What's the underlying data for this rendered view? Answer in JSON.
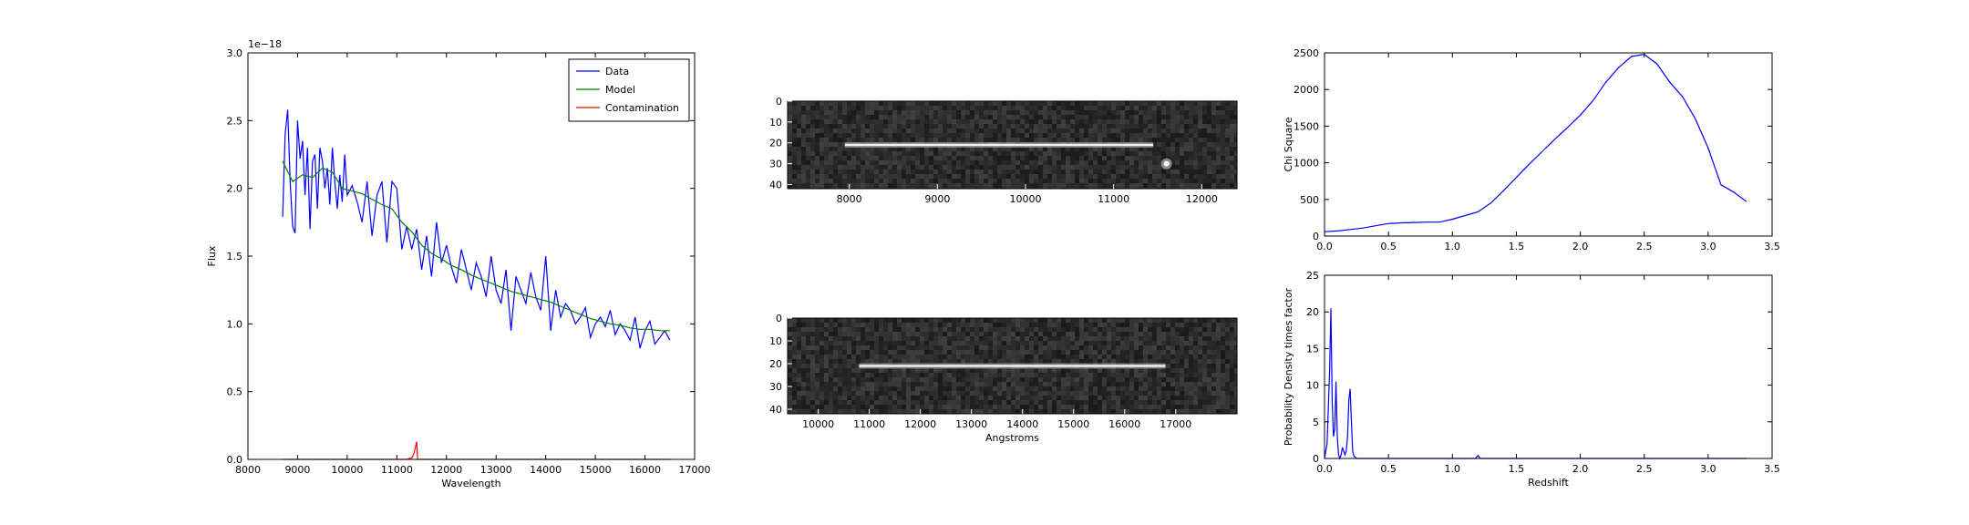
{
  "chart_data": [
    {
      "type": "line",
      "id": "spectrum",
      "xlabel": "Wavelength",
      "ylabel": "Flux",
      "offset_text": "1e−18",
      "xlim": [
        8000,
        17000
      ],
      "ylim": [
        0.0,
        3.0
      ],
      "xticks": [
        "8000",
        "9000",
        "10000",
        "11000",
        "12000",
        "13000",
        "14000",
        "15000",
        "16000",
        "17000"
      ],
      "yticks": [
        "0.0",
        "0.5",
        "1.0",
        "1.5",
        "2.0",
        "2.5",
        "3.0"
      ],
      "legend_position": "top-right",
      "series": [
        {
          "name": "Data",
          "color": "#0000ff",
          "x": [
            8700,
            8750,
            8800,
            8850,
            8900,
            8950,
            9000,
            9050,
            9100,
            9150,
            9200,
            9250,
            9300,
            9350,
            9400,
            9450,
            9500,
            9550,
            9600,
            9650,
            9700,
            9750,
            9800,
            9850,
            9900,
            9950,
            10000,
            10100,
            10200,
            10300,
            10400,
            10500,
            10600,
            10700,
            10800,
            10900,
            11000,
            11100,
            11200,
            11300,
            11400,
            11500,
            11600,
            11700,
            11800,
            11900,
            12000,
            12100,
            12200,
            12300,
            12400,
            12500,
            12600,
            12700,
            12800,
            12900,
            13000,
            13100,
            13200,
            13300,
            13400,
            13500,
            13600,
            13700,
            13800,
            13900,
            14000,
            14100,
            14200,
            14300,
            14400,
            14500,
            14600,
            14700,
            14800,
            14900,
            15000,
            15100,
            15200,
            15300,
            15400,
            15500,
            15600,
            15700,
            15800,
            15900,
            16000,
            16100,
            16200,
            16300,
            16400,
            16500
          ],
          "y": [
            1.79,
            2.4,
            2.58,
            2.05,
            1.72,
            1.67,
            2.5,
            2.22,
            2.35,
            1.95,
            2.3,
            1.7,
            2.2,
            2.25,
            1.85,
            2.3,
            2.2,
            2.0,
            2.15,
            1.88,
            2.3,
            2.05,
            1.85,
            2.1,
            1.9,
            2.25,
            1.95,
            2.02,
            1.9,
            1.75,
            2.05,
            1.65,
            1.95,
            2.05,
            1.6,
            2.05,
            2.0,
            1.55,
            1.72,
            1.55,
            1.7,
            1.4,
            1.65,
            1.35,
            1.75,
            1.45,
            1.58,
            1.42,
            1.3,
            1.55,
            1.4,
            1.25,
            1.45,
            1.35,
            1.2,
            1.5,
            1.25,
            1.15,
            1.4,
            0.95,
            1.35,
            1.25,
            1.15,
            1.38,
            1.2,
            1.1,
            1.5,
            0.95,
            1.25,
            1.05,
            1.15,
            1.1,
            1.0,
            1.05,
            1.12,
            0.9,
            1.0,
            1.05,
            0.98,
            1.1,
            0.92,
            1.0,
            0.95,
            0.88,
            1.05,
            0.82,
            0.95,
            1.02,
            0.85,
            0.9,
            0.95,
            0.88
          ]
        },
        {
          "name": "Model",
          "color": "#008000",
          "x": [
            8700,
            8900,
            9100,
            9300,
            9500,
            9700,
            9900,
            10100,
            10300,
            10500,
            10700,
            10900,
            11100,
            11300,
            11500,
            11700,
            11900,
            12100,
            12300,
            12500,
            12700,
            12900,
            13100,
            13300,
            13500,
            13700,
            13900,
            14100,
            14300,
            14500,
            14700,
            14900,
            15100,
            15300,
            15500,
            15700,
            15900,
            16100,
            16300,
            16500
          ],
          "y": [
            2.2,
            2.05,
            2.1,
            2.08,
            2.15,
            2.12,
            2.0,
            1.98,
            1.96,
            1.92,
            1.88,
            1.85,
            1.75,
            1.68,
            1.58,
            1.52,
            1.48,
            1.43,
            1.4,
            1.36,
            1.33,
            1.3,
            1.27,
            1.24,
            1.22,
            1.2,
            1.18,
            1.16,
            1.13,
            1.1,
            1.07,
            1.04,
            1.02,
            1.0,
            0.99,
            0.97,
            0.96,
            0.96,
            0.95,
            0.95
          ]
        },
        {
          "name": "Contamination",
          "color": "#ff0000",
          "x": [
            8700,
            11200,
            11300,
            11350,
            11380,
            11400,
            11420,
            16500
          ],
          "y": [
            0.0,
            0.0,
            0.01,
            0.05,
            0.1,
            0.13,
            0.0,
            0.0
          ]
        }
      ]
    },
    {
      "type": "heatmap",
      "id": "spectrum-2d-top",
      "xticks": [
        "8000",
        "9000",
        "10000",
        "11000",
        "12000"
      ],
      "yticks": [
        "0",
        "10",
        "20",
        "30",
        "40"
      ],
      "xlim": [
        7300,
        12400
      ],
      "ylim": [
        0,
        42
      ],
      "trace": {
        "x0": 7950,
        "x1": 11450,
        "row": 21
      },
      "blob": {
        "x": 11600,
        "row": 30
      }
    },
    {
      "type": "heatmap",
      "id": "spectrum-2d-bottom",
      "xlabel": "Angstroms",
      "xticks": [
        "10000",
        "11000",
        "12000",
        "13000",
        "14000",
        "15000",
        "16000",
        "17000"
      ],
      "yticks": [
        "0",
        "10",
        "20",
        "30",
        "40"
      ],
      "xlim": [
        9400,
        18200
      ],
      "ylim": [
        0,
        42
      ],
      "trace": {
        "x0": 10800,
        "x1": 16800,
        "row": 21
      }
    },
    {
      "type": "line",
      "id": "chi-square",
      "ylabel": "Chi Square",
      "xlim": [
        0.0,
        3.5
      ],
      "ylim": [
        0,
        2500
      ],
      "xticks": [
        "0.0",
        "0.5",
        "1.0",
        "1.5",
        "2.0",
        "2.5",
        "3.0",
        "3.5"
      ],
      "yticks": [
        "0",
        "500",
        "1000",
        "1500",
        "2000",
        "2500"
      ],
      "series": [
        {
          "color": "#0000ff",
          "x": [
            0.0,
            0.1,
            0.2,
            0.3,
            0.4,
            0.5,
            0.6,
            0.7,
            0.8,
            0.9,
            1.0,
            1.1,
            1.2,
            1.3,
            1.4,
            1.5,
            1.6,
            1.7,
            1.8,
            1.9,
            2.0,
            2.1,
            2.2,
            2.3,
            2.4,
            2.5,
            2.6,
            2.7,
            2.8,
            2.9,
            3.0,
            3.1,
            3.2,
            3.3
          ],
          "y": [
            60,
            70,
            90,
            110,
            140,
            170,
            180,
            185,
            190,
            190,
            230,
            280,
            330,
            450,
            620,
            800,
            980,
            1150,
            1320,
            1480,
            1650,
            1850,
            2100,
            2300,
            2450,
            2480,
            2350,
            2100,
            1900,
            1600,
            1200,
            700,
            600,
            470
          ]
        }
      ]
    },
    {
      "type": "line",
      "id": "probability-density",
      "xlabel": "Redshift",
      "ylabel": "Probability Density times factor",
      "xlim": [
        0.0,
        3.5
      ],
      "ylim": [
        0,
        25
      ],
      "xticks": [
        "0.0",
        "0.5",
        "1.0",
        "1.5",
        "2.0",
        "2.5",
        "3.0",
        "3.5"
      ],
      "yticks": [
        "0",
        "5",
        "10",
        "15",
        "20",
        "25"
      ],
      "series": [
        {
          "color": "#0000ff",
          "x": [
            0.0,
            0.02,
            0.04,
            0.05,
            0.06,
            0.07,
            0.08,
            0.09,
            0.1,
            0.11,
            0.12,
            0.13,
            0.14,
            0.15,
            0.16,
            0.17,
            0.18,
            0.19,
            0.2,
            0.21,
            0.22,
            0.23,
            0.24,
            0.25,
            0.28,
            0.3,
            1.0,
            1.18,
            1.2,
            1.22,
            1.4,
            3.3
          ],
          "y": [
            0,
            2,
            12,
            20.5,
            8,
            3,
            4,
            10.5,
            3,
            0.5,
            0,
            0.5,
            1.5,
            1,
            0.5,
            1,
            3,
            8,
            9.5,
            5,
            1,
            0.3,
            0.2,
            0,
            0,
            0,
            0,
            0,
            0.4,
            0,
            0,
            0
          ]
        }
      ]
    }
  ]
}
